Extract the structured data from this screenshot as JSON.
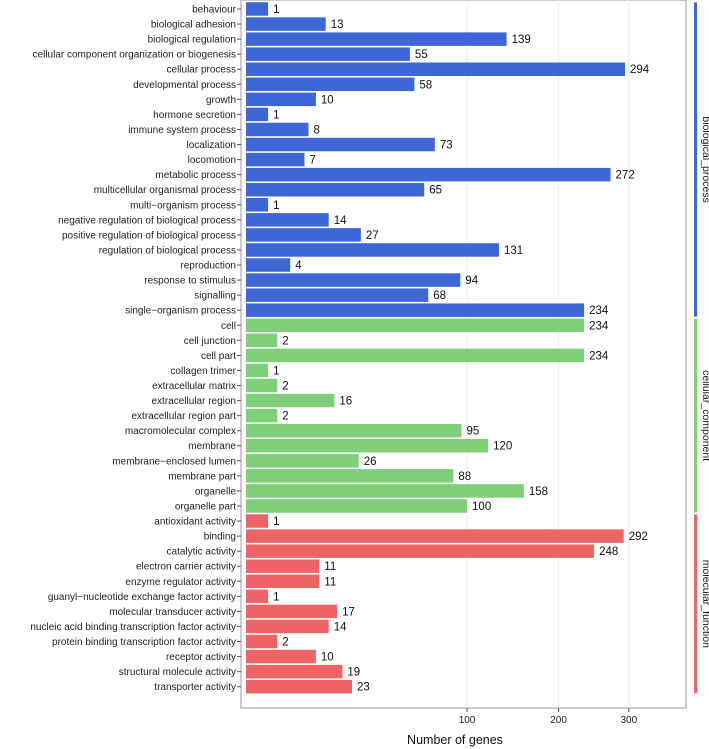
{
  "chart_data": {
    "type": "bar",
    "orientation": "horizontal",
    "xlabel": "Number of genes",
    "x_scale": "sqrt",
    "x_ticks": [
      100,
      200,
      300
    ],
    "xlim": [
      0,
      350
    ],
    "grid": true,
    "legend": "facet-strips-right",
    "colors": {
      "biological_process": "#3f66d6",
      "cellular_component": "#7fcf7a",
      "molecular_function": "#ee6464"
    },
    "groups": [
      {
        "name": "biological_process",
        "categories": [
          "behaviour",
          "biological adhesion",
          "biological regulation",
          "cellular component organization or biogenesis",
          "cellular process",
          "developmental process",
          "growth",
          "hormone secretion",
          "immune system process",
          "localization",
          "locomotion",
          "metabolic process",
          "multicellular organismal process",
          "multi−organism process",
          "negative regulation of biological process",
          "positive regulation of biological process",
          "regulation of biological process",
          "reproduction",
          "response to stimulus",
          "signalling",
          "single−organism process"
        ],
        "values": [
          1,
          13,
          139,
          55,
          294,
          58,
          10,
          1,
          8,
          73,
          7,
          272,
          65,
          1,
          14,
          27,
          131,
          4,
          94,
          68,
          234
        ]
      },
      {
        "name": "cellular_component",
        "categories": [
          "cell",
          "cell junction",
          "cell part",
          "collagen trimer",
          "extracellular matrix",
          "extracellular region",
          "extracellular region part",
          "macromolecular complex",
          "membrane",
          "membrane−enclosed lumen",
          "membrane part",
          "organelle",
          "organelle part"
        ],
        "values": [
          234,
          2,
          234,
          1,
          2,
          16,
          2,
          95,
          120,
          26,
          88,
          158,
          100
        ]
      },
      {
        "name": "molecular_function",
        "categories": [
          "antioxidant activity",
          "binding",
          "catalytic activity",
          "electron carrier activity",
          "enzyme regulator activity",
          "guanyl−nucleotide exchange factor activity",
          "molecular transducer activity",
          "nucleic acid binding transcription factor activity",
          "protein binding transcription factor activity",
          "receptor activity",
          "structural molecule activity",
          "transporter activity"
        ],
        "values": [
          1,
          292,
          248,
          11,
          11,
          1,
          17,
          14,
          2,
          10,
          19,
          23
        ]
      }
    ]
  }
}
